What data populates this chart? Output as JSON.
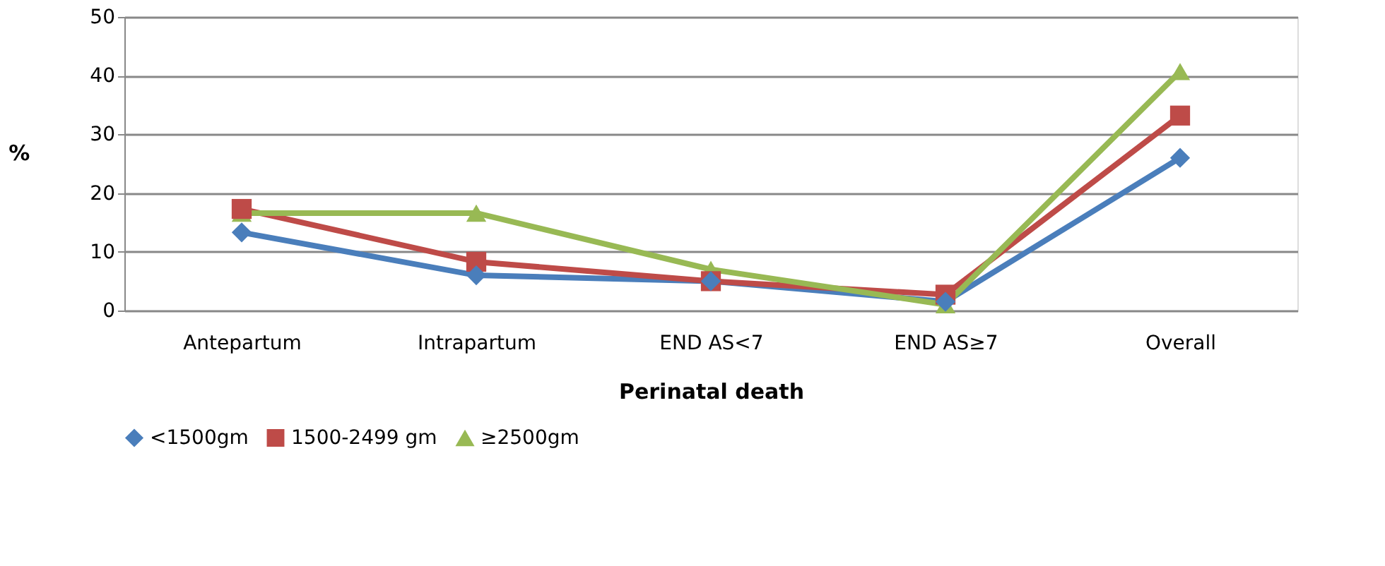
{
  "chart_data": {
    "type": "line",
    "xlabel": "Perinatal death",
    "ylabel": "%",
    "categories": [
      "Antepartum",
      "Intrapartum",
      "END AS<7",
      "END  AS≥7",
      "Overall"
    ],
    "series": [
      {
        "name": "<1500gm",
        "color": "#4a7ebb",
        "marker": "diamond",
        "values": [
          13.3,
          6,
          5,
          1.5,
          26
        ]
      },
      {
        "name": "1500-2499 gm",
        "color": "#be4b48",
        "marker": "square",
        "values": [
          17.3,
          8.3,
          5,
          2.7,
          33.2
        ]
      },
      {
        "name": "≥2500gm",
        "color": "#98b954",
        "marker": "triangle",
        "values": [
          16.6,
          16.6,
          7,
          1,
          40.7
        ]
      }
    ],
    "ylim": [
      0,
      50
    ],
    "yticks": [
      0,
      10,
      20,
      30,
      40,
      50
    ],
    "grid": "y",
    "legend": "bottom",
    "line_style": "solid"
  }
}
